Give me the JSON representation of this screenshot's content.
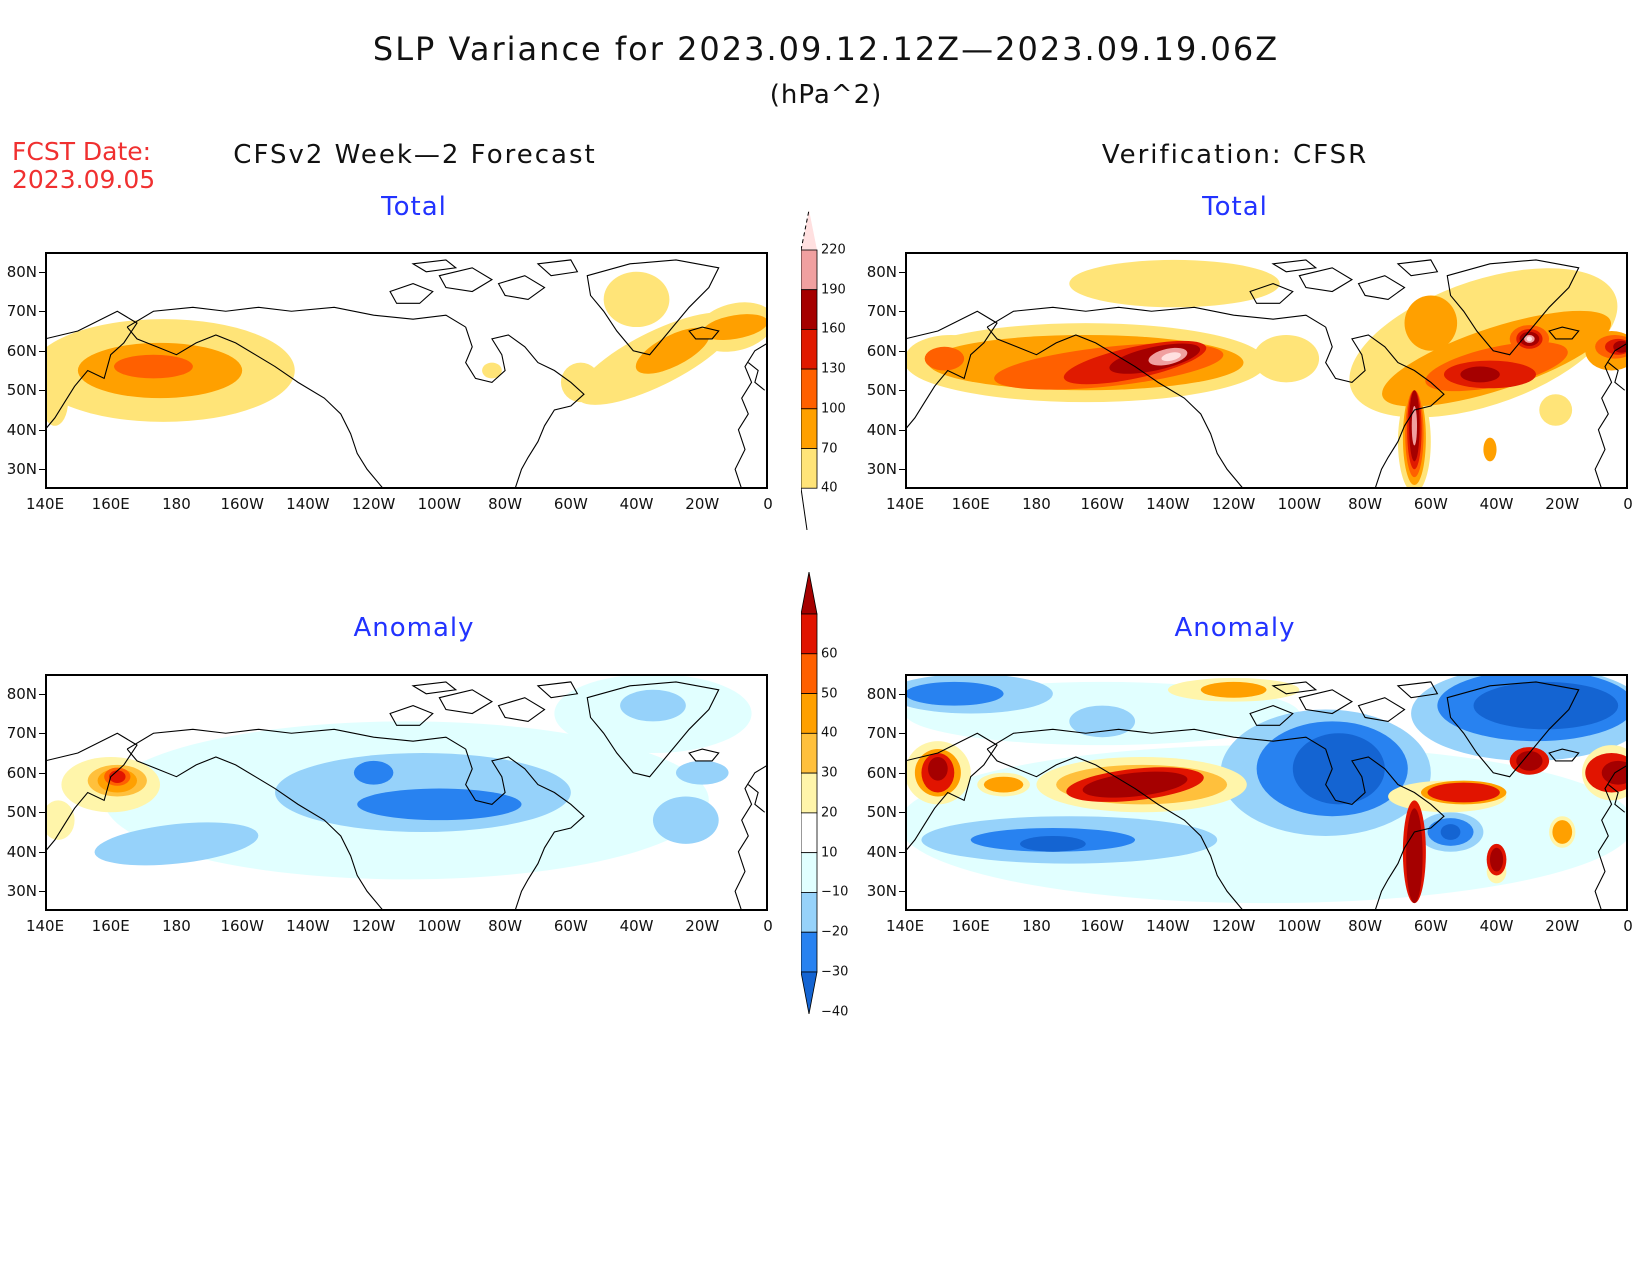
{
  "title": "SLP Variance for 2023.09.12.12Z—2023.09.19.06Z",
  "units": "(hPa^2)",
  "fcst_label": "FCST Date:",
  "fcst_date": "2023.09.05",
  "left_header": "CFSv2 Week—2 Forecast",
  "right_header": "Verification: CFSR",
  "panel_titles": {
    "total": "Total",
    "anomaly": "Anomaly"
  },
  "chart_data": {
    "type": "heatmap",
    "map_extent": {
      "lon": [
        "140E",
        "0"
      ],
      "lat": [
        "25N",
        "85N"
      ]
    },
    "lon_ticks": [
      "140E",
      "160E",
      "180",
      "160W",
      "140W",
      "120W",
      "100W",
      "80W",
      "60W",
      "40W",
      "20W",
      "0"
    ],
    "lat_ticks": [
      "80N",
      "70N",
      "60N",
      "50N",
      "40N",
      "30N"
    ],
    "panels": [
      {
        "name": "forecast-total",
        "column": "CFSv2 Week-2 Forecast",
        "field": "Total"
      },
      {
        "name": "verification-total",
        "column": "Verification: CFSR",
        "field": "Total"
      },
      {
        "name": "forecast-anomaly",
        "column": "CFSv2 Week-2 Forecast",
        "field": "Anomaly"
      },
      {
        "name": "verification-anomaly",
        "column": "Verification: CFSR",
        "field": "Anomaly"
      }
    ],
    "total_colorbar": {
      "levels": [
        "40",
        "70",
        "100",
        "130",
        "160",
        "190",
        "220"
      ],
      "colors": [
        "#ffe478",
        "#ffa000",
        "#ff6000",
        "#e01a00",
        "#a50000",
        "#f0a0a0",
        "#ffe0e0"
      ]
    },
    "anomaly_colorbar": {
      "levels": [
        "60",
        "50",
        "40",
        "30",
        "20",
        "10",
        "−10",
        "−20",
        "−30",
        "−40"
      ],
      "colors": [
        "#a50000",
        "#e11400",
        "#ff6000",
        "#ffa000",
        "#ffc03c",
        "#fff5aa",
        "#ffffff",
        "#e1ffff",
        "#96d2fa",
        "#2882f0",
        "#1464d2"
      ]
    }
  }
}
